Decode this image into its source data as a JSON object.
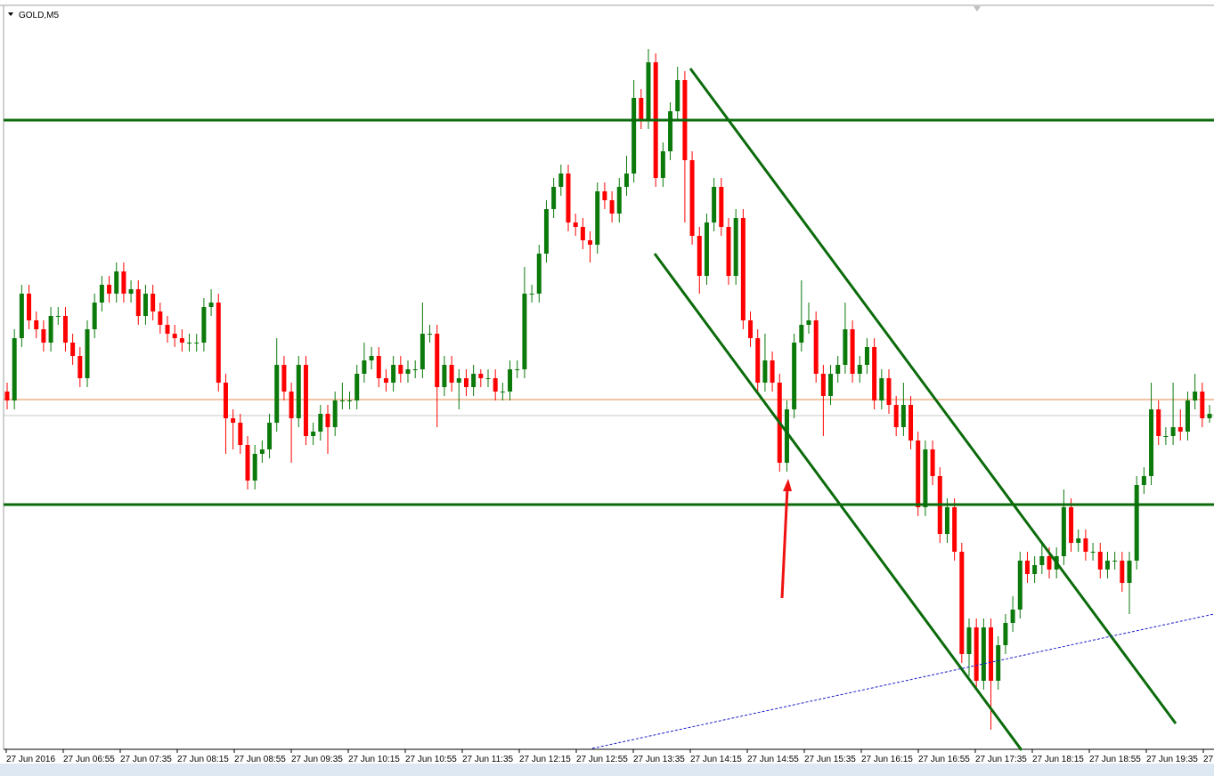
{
  "chart_data": {
    "type": "candlestick",
    "title": "GOLD,M5",
    "x_labels": [
      "27 Jun 2016",
      "27 Jun 06:55",
      "27 Jun 07:35",
      "27 Jun 08:15",
      "27 Jun 08:55",
      "27 Jun 09:35",
      "27 Jun 10:15",
      "27 Jun 10:55",
      "27 Jun 11:35",
      "27 Jun 12:15",
      "27 Jun 12:55",
      "27 Jun 13:35",
      "27 Jun 14:15",
      "27 Jun 14:55",
      "27 Jun 15:35",
      "27 Jun 16:15",
      "27 Jun 16:55",
      "27 Jun 17:35",
      "27 Jun 18:15",
      "27 Jun 18:55",
      "27 Jun 19:35",
      "27"
    ],
    "up_color": "#0b7a0b",
    "down_color": "#ff0000",
    "ylim": [
      0,
      828
    ],
    "open": [
      400,
      390,
      460,
      510,
      480,
      470,
      455,
      485,
      485,
      455,
      440,
      415,
      470,
      500,
      520,
      510,
      535,
      510,
      515,
      485,
      510,
      490,
      475,
      465,
      460,
      455,
      455,
      455,
      495,
      500,
      410,
      370,
      365,
      340,
      300,
      330,
      335,
      365,
      430,
      400,
      370,
      430,
      350,
      355,
      375,
      360,
      390,
      390,
      390,
      420,
      435,
      440,
      415,
      410,
      430,
      420,
      425,
      425,
      465,
      465,
      405,
      430,
      410,
      415,
      405,
      420,
      415,
      415,
      400,
      400,
      425,
      425,
      510,
      510,
      555,
      605,
      630,
      645,
      590,
      585,
      570,
      565,
      625,
      615,
      600,
      630,
      645,
      730,
      705,
      770,
      640,
      670,
      715,
      750,
      660,
      575,
      530,
      590,
      630,
      585,
      530,
      595,
      480,
      460,
      410,
      435,
      410,
      320,
      380,
      455,
      475,
      480,
      420,
      395,
      420,
      430,
      470,
      420,
      430,
      450,
      390,
      415,
      385,
      360,
      385,
      345,
      270,
      335,
      305,
      240,
      270,
      220,
      105,
      135,
      75,
      135,
      75,
      115,
      140,
      155,
      210,
      195,
      205,
      215,
      200,
      215,
      270,
      230,
      235,
      220,
      220,
      200,
      210,
      210,
      185,
      210,
      295,
      305,
      380,
      350,
      350,
      360,
      355,
      390,
      400,
      370
    ],
    "high": [
      410,
      470,
      520,
      520,
      490,
      480,
      495,
      495,
      495,
      465,
      450,
      480,
      510,
      530,
      530,
      545,
      545,
      525,
      525,
      520,
      520,
      500,
      485,
      475,
      470,
      465,
      465,
      505,
      515,
      510,
      420,
      380,
      375,
      350,
      340,
      345,
      375,
      460,
      440,
      410,
      440,
      440,
      365,
      385,
      385,
      400,
      410,
      400,
      430,
      455,
      450,
      450,
      425,
      440,
      440,
      435,
      435,
      500,
      475,
      475,
      440,
      440,
      425,
      425,
      430,
      425,
      425,
      425,
      410,
      435,
      435,
      540,
      520,
      565,
      615,
      640,
      655,
      655,
      600,
      595,
      580,
      635,
      635,
      625,
      640,
      665,
      750,
      740,
      785,
      780,
      680,
      725,
      765,
      760,
      670,
      585,
      600,
      640,
      640,
      595,
      605,
      605,
      490,
      470,
      465,
      445,
      420,
      390,
      465,
      525,
      500,
      490,
      430,
      430,
      440,
      500,
      480,
      440,
      460,
      460,
      425,
      425,
      395,
      410,
      395,
      355,
      345,
      345,
      315,
      280,
      280,
      230,
      145,
      145,
      145,
      145,
      125,
      150,
      170,
      220,
      220,
      215,
      230,
      225,
      225,
      290,
      280,
      245,
      245,
      230,
      230,
      220,
      220,
      220,
      220,
      305,
      315,
      410,
      390,
      360,
      410,
      380,
      400,
      420,
      410,
      385
    ],
    "low": [
      380,
      380,
      450,
      470,
      460,
      445,
      445,
      475,
      445,
      430,
      405,
      405,
      460,
      490,
      500,
      500,
      500,
      500,
      475,
      475,
      480,
      465,
      455,
      450,
      445,
      445,
      445,
      445,
      485,
      400,
      330,
      335,
      330,
      290,
      290,
      320,
      325,
      355,
      390,
      320,
      360,
      340,
      340,
      345,
      330,
      350,
      380,
      380,
      380,
      410,
      425,
      405,
      400,
      400,
      410,
      410,
      415,
      415,
      455,
      360,
      395,
      400,
      380,
      395,
      395,
      405,
      405,
      390,
      390,
      390,
      415,
      415,
      500,
      500,
      545,
      595,
      620,
      580,
      575,
      560,
      545,
      555,
      605,
      590,
      590,
      620,
      635,
      695,
      695,
      630,
      630,
      660,
      705,
      590,
      565,
      510,
      520,
      580,
      575,
      520,
      520,
      470,
      450,
      400,
      400,
      400,
      310,
      310,
      370,
      445,
      465,
      410,
      350,
      385,
      410,
      420,
      410,
      410,
      420,
      380,
      380,
      375,
      350,
      350,
      335,
      260,
      260,
      295,
      230,
      230,
      210,
      95,
      80,
      65,
      65,
      20,
      65,
      105,
      130,
      145,
      185,
      185,
      195,
      190,
      190,
      205,
      220,
      220,
      210,
      210,
      190,
      190,
      200,
      175,
      150,
      200,
      285,
      295,
      340,
      340,
      340,
      345,
      345,
      380,
      360,
      365
    ],
    "close": [
      390,
      460,
      510,
      480,
      470,
      455,
      485,
      485,
      455,
      440,
      415,
      470,
      500,
      520,
      510,
      535,
      510,
      515,
      485,
      510,
      490,
      475,
      465,
      460,
      455,
      455,
      455,
      495,
      500,
      410,
      370,
      365,
      340,
      300,
      330,
      335,
      365,
      430,
      400,
      370,
      430,
      350,
      355,
      375,
      360,
      390,
      390,
      390,
      420,
      435,
      440,
      415,
      410,
      430,
      420,
      425,
      425,
      465,
      465,
      405,
      430,
      410,
      415,
      405,
      420,
      415,
      415,
      400,
      400,
      425,
      425,
      510,
      510,
      555,
      605,
      630,
      645,
      590,
      585,
      570,
      565,
      625,
      615,
      600,
      630,
      645,
      730,
      705,
      770,
      640,
      670,
      715,
      750,
      660,
      575,
      530,
      590,
      630,
      585,
      530,
      595,
      480,
      460,
      410,
      435,
      410,
      320,
      380,
      455,
      475,
      480,
      420,
      395,
      420,
      430,
      470,
      420,
      430,
      450,
      390,
      415,
      385,
      360,
      385,
      345,
      270,
      335,
      305,
      240,
      270,
      220,
      105,
      135,
      75,
      135,
      75,
      115,
      140,
      155,
      210,
      195,
      205,
      215,
      200,
      215,
      270,
      230,
      235,
      220,
      220,
      200,
      210,
      210,
      185,
      210,
      295,
      305,
      380,
      350,
      350,
      360,
      355,
      390,
      400,
      370,
      375
    ]
  }
}
